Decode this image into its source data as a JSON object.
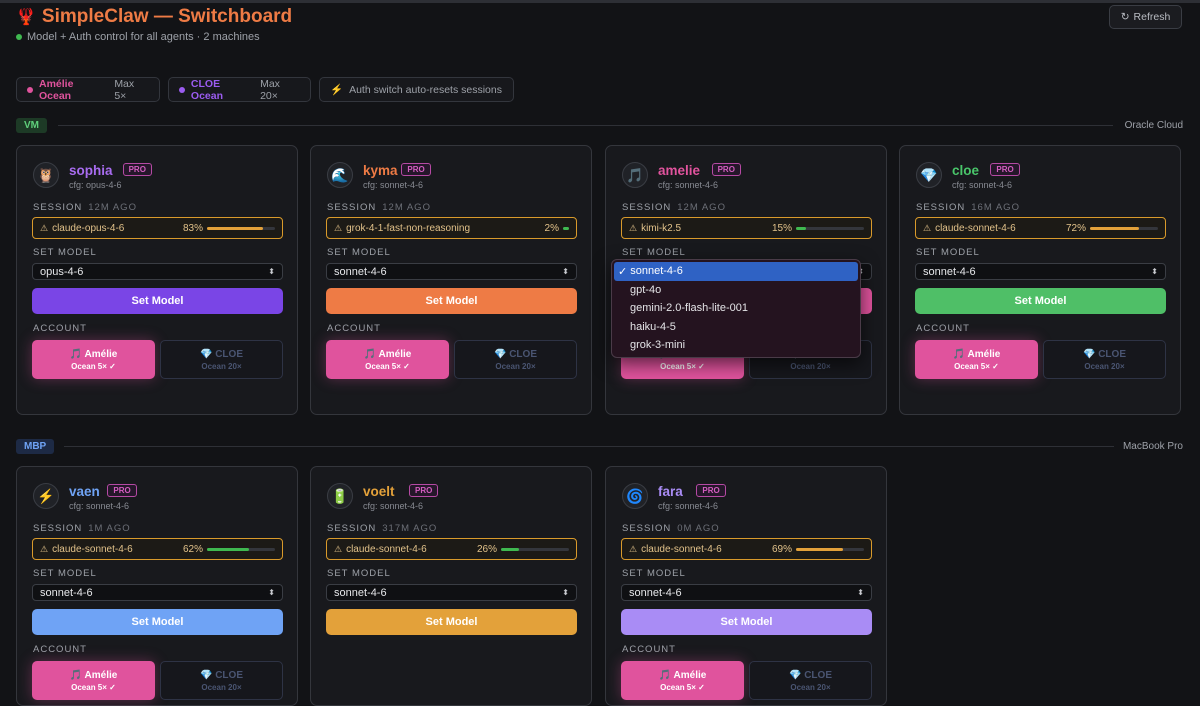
{
  "header": {
    "title": "SimpleClaw — Switchboard",
    "subtitle": "Model + Auth control for all agents · 2 machines",
    "refresh_label": "Refresh",
    "status_color": "#3fb950"
  },
  "pills": {
    "amelie_name": "Amélie Ocean",
    "amelie_plan": "Max 5×",
    "cloe_name": "CLOE Ocean",
    "cloe_plan": "Max 20×",
    "auth_note": "Auth switch auto-resets sessions"
  },
  "sections": {
    "vm_tag": "VM",
    "vm_host": "Oracle Cloud",
    "mbp_tag": "MBP",
    "mbp_host": "MacBook Pro"
  },
  "labels": {
    "session": "SESSION",
    "set_model": "SET MODEL",
    "account": "ACCOUNT",
    "pro": "PRO",
    "set_model_button": "Set Model",
    "acct_amelie": "🎵 Amélie",
    "acct_amelie_plan": "Ocean 5× ✓",
    "acct_cloe": "💎 CLOE",
    "acct_cloe_plan": "Ocean 20×"
  },
  "agents": [
    {
      "name": "sophia",
      "avatar": "🦉",
      "cfg": "cfg: opus-4-6",
      "session_age": "12M AGO",
      "session_model": "claude-opus-4-6",
      "session_pct": "83%",
      "session_fraction": 0.83,
      "bar_color": "#e3a13a",
      "selected_model": "opus-4-6",
      "name_color": "#a86cf0",
      "button_color": "#7a45e6"
    },
    {
      "name": "kyma",
      "avatar": "🌊",
      "cfg": "cfg: sonnet-4-6",
      "session_age": "12M AGO",
      "session_model": "grok-4-1-fast-non-reasoning",
      "session_pct": "2%",
      "session_fraction": 0.02,
      "bar_color": "#3fb950",
      "selected_model": "sonnet-4-6",
      "name_color": "#ee7b45",
      "button_color": "#ee7b45"
    },
    {
      "name": "amelie",
      "avatar": "🎵",
      "cfg": "cfg: sonnet-4-6",
      "session_age": "12M AGO",
      "session_model": "kimi-k2.5",
      "session_pct": "15%",
      "session_fraction": 0.15,
      "bar_color": "#3fb950",
      "selected_model": "sonnet-4-6",
      "name_color": "#e0539d",
      "button_color": "#e0539d"
    },
    {
      "name": "cloe",
      "avatar": "💎",
      "cfg": "cfg: sonnet-4-6",
      "session_age": "16M AGO",
      "session_model": "claude-sonnet-4-6",
      "session_pct": "72%",
      "session_fraction": 0.72,
      "bar_color": "#e3a13a",
      "selected_model": "sonnet-4-6",
      "name_color": "#49c56a",
      "button_color": "#4fbf67"
    },
    {
      "name": "vaen",
      "avatar": "⚡",
      "cfg": "cfg: sonnet-4-6",
      "session_age": "1M AGO",
      "session_model": "claude-sonnet-4-6",
      "session_pct": "62%",
      "session_fraction": 0.62,
      "bar_color": "#3fb950",
      "selected_model": "sonnet-4-6",
      "name_color": "#6fa3f5",
      "button_color": "#6fa3f5"
    },
    {
      "name": "voelt",
      "avatar": "🔋",
      "cfg": "cfg: sonnet-4-6",
      "session_age": "317M AGO",
      "session_model": "claude-sonnet-4-6",
      "session_pct": "26%",
      "session_fraction": 0.26,
      "bar_color": "#3fb950",
      "selected_model": "sonnet-4-6",
      "name_color": "#e3a13a",
      "button_color": "#e3a13a"
    },
    {
      "name": "fara",
      "avatar": "🌀",
      "cfg": "cfg: sonnet-4-6",
      "session_age": "0M AGO",
      "session_model": "claude-sonnet-4-6",
      "session_pct": "69%",
      "session_fraction": 0.69,
      "bar_color": "#e3a13a",
      "selected_model": "sonnet-4-6",
      "name_color": "#a98cf5",
      "button_color": "#a98cf5"
    }
  ],
  "dropdown": {
    "options": [
      "sonnet-4-6",
      "gpt-4o",
      "gemini-2.0-flash-lite-001",
      "haiku-4-5",
      "grok-3-mini"
    ],
    "selected": "sonnet-4-6"
  }
}
